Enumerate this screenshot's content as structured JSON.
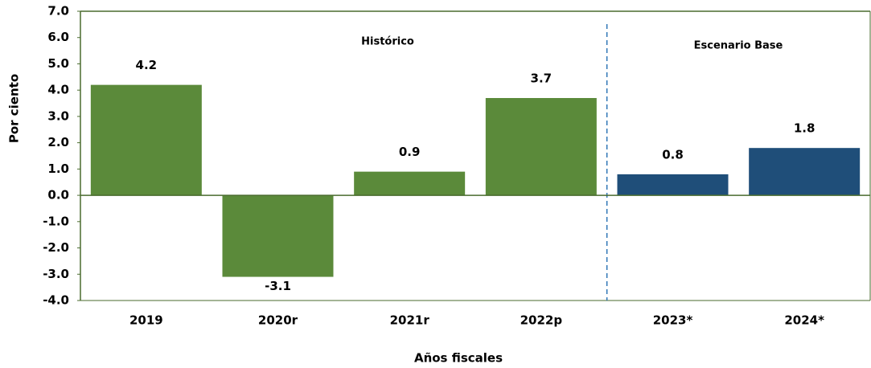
{
  "chart_data": {
    "type": "bar",
    "categories": [
      "2019",
      "2020r",
      "2021r",
      "2022p",
      "2023*",
      "2024*"
    ],
    "values": [
      4.2,
      -3.1,
      0.9,
      3.7,
      0.8,
      1.8
    ],
    "colors": [
      "#5b8a3a",
      "#5b8a3a",
      "#5b8a3a",
      "#5b8a3a",
      "#1f4e79",
      "#1f4e79"
    ],
    "x_label": "Años fiscales",
    "y_label": "Por ciento",
    "annotations": [
      "Histórico",
      "Escenario Base"
    ],
    "ylim": [
      -4,
      7
    ],
    "yticks": [
      {
        "value": -4,
        "label": "-4.0"
      },
      {
        "value": -3,
        "label": "-3.0"
      },
      {
        "value": -2,
        "label": "-2.0"
      },
      {
        "value": -1,
        "label": "-1.0"
      },
      {
        "value": 0,
        "label": "0.0"
      },
      {
        "value": 1,
        "label": "1.0"
      },
      {
        "value": 2,
        "label": "2.0"
      },
      {
        "value": 3,
        "label": "3.0"
      },
      {
        "value": 4,
        "label": "4.0"
      },
      {
        "value": 5,
        "label": "5.0"
      },
      {
        "value": 6,
        "label": "6.0"
      },
      {
        "value": 7,
        "label": "7.0"
      }
    ],
    "grid": false
  }
}
